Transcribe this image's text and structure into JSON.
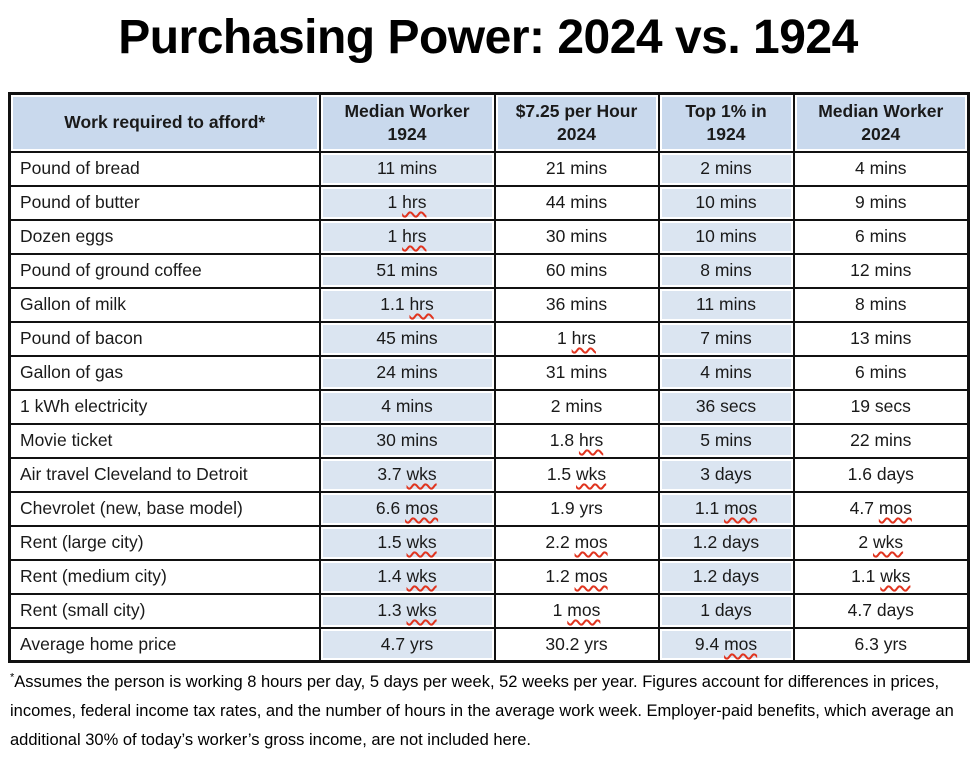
{
  "title": "Purchasing Power: 2024 vs. 1924",
  "chart_data": {
    "type": "table",
    "title": "Purchasing Power: 2024 vs. 1924",
    "columns": [
      "Work required to afford*",
      "Median Worker 1924",
      "$7.25 per Hour 2024",
      "Top 1% in 1924",
      "Median Worker 2024"
    ],
    "rows": [
      [
        "Pound of bread",
        "11 mins",
        "21 mins",
        "2 mins",
        "4 mins"
      ],
      [
        "Pound of butter",
        "1 hrs",
        "44 mins",
        "10 mins",
        "9 mins"
      ],
      [
        "Dozen eggs",
        "1 hrs",
        "30 mins",
        "10 mins",
        "6 mins"
      ],
      [
        "Pound of ground coffee",
        "51 mins",
        "60 mins",
        "8 mins",
        "12 mins"
      ],
      [
        "Gallon of milk",
        "1.1 hrs",
        "36 mins",
        "11 mins",
        "8 mins"
      ],
      [
        "Pound of bacon",
        "45 mins",
        "1 hrs",
        "7 mins",
        "13 mins"
      ],
      [
        "Gallon of gas",
        "24 mins",
        "31 mins",
        "4 mins",
        "6 mins"
      ],
      [
        "1 kWh electricity",
        "4 mins",
        "2 mins",
        "36 secs",
        "19 secs"
      ],
      [
        "Movie ticket",
        "30 mins",
        "1.8 hrs",
        "5 mins",
        "22 mins"
      ],
      [
        "Air travel Cleveland to Detroit",
        "3.7 wks",
        "1.5 wks",
        "3 days",
        "1.6 days"
      ],
      [
        "Chevrolet (new, base model)",
        "6.6 mos",
        "1.9 yrs",
        "1.1 mos",
        "4.7 mos"
      ],
      [
        "Rent (large city)",
        "1.5 wks",
        "2.2 mos",
        "1.2 days",
        "2 wks"
      ],
      [
        "Rent (medium city)",
        "1.4 wks",
        "1.2 mos",
        "1.2 days",
        "1.1 wks"
      ],
      [
        "Rent (small city)",
        "1.3 wks",
        "1 mos",
        "1 days",
        "4.7 days"
      ],
      [
        "Average home price",
        "4.7 yrs",
        "30.2 yrs",
        "9.4 mos",
        "6.3 yrs"
      ]
    ],
    "shaded_column_indexes": [
      1,
      3
    ],
    "misspelled_units": [
      "hrs",
      "wks",
      "mos"
    ],
    "footnote_marker": "*",
    "footnote_text": "Assumes the person is working 8 hours per day, 5 days per week, 52 weeks per year. Figures account for differences in prices, incomes, federal income tax rates, and the number of hours in the average work week. Employer-paid benefits, which average an additional 30% of today’s worker’s gross income, are not included here.",
    "layout": {
      "legend": "none",
      "grid": "all black borders",
      "shaded_columns": [
        "Median Worker 1924",
        "Top 1% in 1924"
      ]
    },
    "colors": {
      "header_bg": "#c9d9ed",
      "shaded_cell_bg": "#dbe5f1",
      "border": "#111111",
      "squiggle_red": "#e0341f",
      "text": "#1a1a1a"
    }
  }
}
